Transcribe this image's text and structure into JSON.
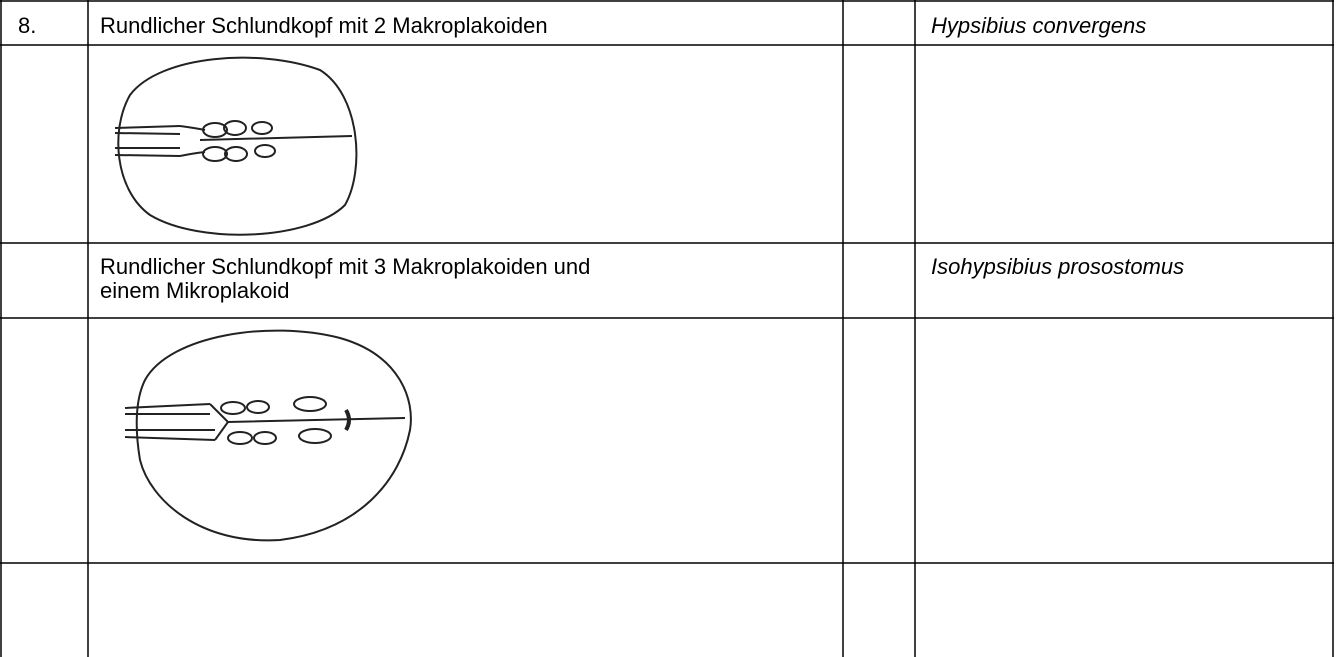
{
  "table": {
    "rows": [
      [
        "8.",
        "Rundlicher Schlundkopf mit 2 Makroplakoiden",
        "",
        "Hypsibius convergens"
      ],
      [
        "",
        [
          "Rundlicher Schlundkopf mit 3 Makroplakoiden und",
          "einem Mikroplakoid"
        ],
        "",
        "Isohypsibius prosostomus"
      ]
    ]
  }
}
